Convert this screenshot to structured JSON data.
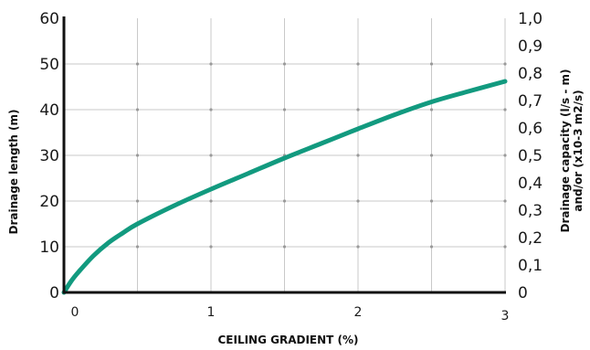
{
  "chart_data": {
    "type": "line",
    "xlabel": "CEILING GRADIENT (%)",
    "ylabel": "Drainage length (m)",
    "y2label_line1": "Drainage capacity (l/s - m)",
    "y2label_line2": "and/or (x10-3 m2/s)",
    "xlim": [
      0,
      3
    ],
    "ylim": [
      0,
      60
    ],
    "y2lim": [
      0,
      1.0
    ],
    "x_ticks": [
      0,
      1,
      2,
      3
    ],
    "x_tick_labels": [
      "0",
      "1",
      "2",
      "3"
    ],
    "y_ticks": [
      0,
      10,
      20,
      30,
      40,
      50,
      60
    ],
    "y_tick_labels": [
      "0",
      "10",
      "20",
      "30",
      "40",
      "50",
      "60"
    ],
    "y2_ticks": [
      0,
      0.1,
      0.2,
      0.3,
      0.4,
      0.5,
      0.6,
      0.7,
      0.8,
      0.9,
      1.0
    ],
    "y2_tick_labels": [
      "0",
      "0,1",
      "0,2",
      "0,3",
      "0,4",
      "0,5",
      "0,6",
      "0,7",
      "0,8",
      "0,9",
      "1,0"
    ],
    "x_grid": [
      0.5,
      1,
      1.5,
      2,
      2.5,
      3
    ],
    "y_grid": [
      10,
      20,
      30,
      40,
      50
    ],
    "grid": true,
    "series": [
      {
        "color": "#129a7f",
        "x": [
          0,
          0.05,
          0.1,
          0.2,
          0.3,
          0.4,
          0.5,
          0.75,
          1.0,
          1.25,
          1.5,
          1.75,
          2.0,
          2.25,
          2.5,
          2.75,
          3.0
        ],
        "y": [
          0,
          2.5,
          4.5,
          8,
          10.8,
          13,
          15,
          19,
          22.6,
          26,
          29.4,
          32.6,
          35.8,
          38.9,
          41.7,
          44,
          46.2
        ]
      }
    ]
  }
}
